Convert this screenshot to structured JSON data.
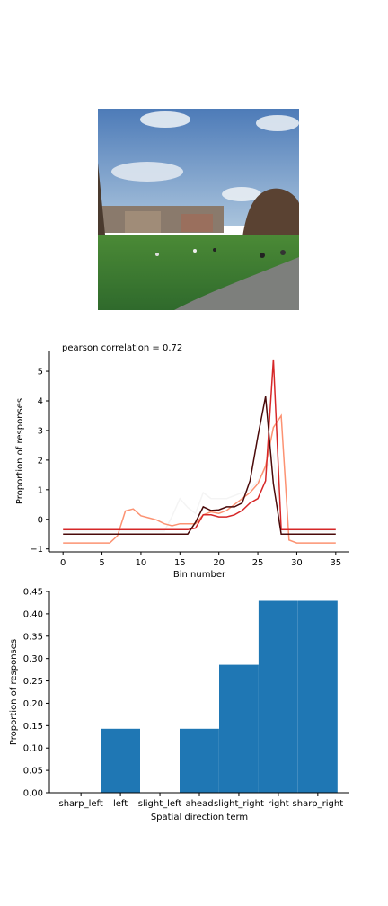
{
  "photo": {
    "icon": "campus-lawn-photo",
    "colors": {
      "sky": "#5b87c0",
      "grass": "#3f7a2e",
      "path": "#7d7f7c",
      "trees": "#5a4232"
    }
  },
  "chart_data": [
    {
      "type": "line",
      "title": "pearson correlation = 0.72",
      "xlabel": "Bin number",
      "ylabel": "Proportion of responses",
      "xlim": [
        -1.75,
        36.75
      ],
      "ylim": [
        -1.1,
        5.7
      ],
      "xticks": [
        0,
        5,
        10,
        15,
        20,
        25,
        30,
        35
      ],
      "yticks": [
        -1,
        0,
        1,
        2,
        3,
        4,
        5
      ],
      "x": [
        0,
        1,
        2,
        3,
        4,
        5,
        6,
        7,
        8,
        9,
        10,
        11,
        12,
        13,
        14,
        15,
        16,
        17,
        18,
        19,
        20,
        21,
        22,
        23,
        24,
        25,
        26,
        27,
        28,
        29,
        30,
        31,
        32,
        33,
        34,
        35
      ],
      "series": [
        {
          "color": "#f4f4f4",
          "values": [
            -0.4,
            -0.4,
            -0.4,
            -0.4,
            -0.4,
            -0.4,
            -0.4,
            -0.4,
            -0.4,
            -0.4,
            -0.4,
            -0.4,
            -0.4,
            -0.4,
            0.1,
            0.7,
            0.4,
            0.2,
            0.9,
            0.7,
            0.7,
            0.7,
            0.8,
            0.9,
            1.0,
            1.3,
            1.7,
            2.2,
            -0.4,
            -0.4,
            -0.4,
            -0.4,
            -0.4,
            -0.4,
            -0.4,
            -0.4
          ]
        },
        {
          "color": "#fc9272",
          "values": [
            -0.8,
            -0.8,
            -0.8,
            -0.8,
            -0.8,
            -0.8,
            -0.8,
            -0.55,
            0.28,
            0.35,
            0.12,
            0.05,
            -0.02,
            -0.15,
            -0.22,
            -0.15,
            -0.15,
            -0.15,
            0.15,
            0.25,
            0.2,
            0.3,
            0.5,
            0.7,
            0.9,
            1.2,
            1.8,
            3.1,
            3.5,
            -0.7,
            -0.8,
            -0.8,
            -0.8,
            -0.8,
            -0.8,
            -0.8
          ]
        },
        {
          "color": "#d62728",
          "values": [
            -0.35,
            -0.35,
            -0.35,
            -0.35,
            -0.35,
            -0.35,
            -0.35,
            -0.35,
            -0.35,
            -0.35,
            -0.35,
            -0.35,
            -0.35,
            -0.35,
            -0.35,
            -0.35,
            -0.35,
            -0.3,
            0.15,
            0.15,
            0.08,
            0.08,
            0.15,
            0.3,
            0.55,
            0.7,
            1.3,
            5.4,
            -0.35,
            -0.35,
            -0.35,
            -0.35,
            -0.35,
            -0.35,
            -0.35,
            -0.35
          ]
        },
        {
          "color": "#4a0a0a",
          "values": [
            -0.5,
            -0.5,
            -0.5,
            -0.5,
            -0.5,
            -0.5,
            -0.5,
            -0.5,
            -0.5,
            -0.5,
            -0.5,
            -0.5,
            -0.5,
            -0.5,
            -0.5,
            -0.5,
            -0.5,
            -0.1,
            0.42,
            0.3,
            0.32,
            0.42,
            0.42,
            0.55,
            1.3,
            2.8,
            4.15,
            1.2,
            -0.5,
            -0.5,
            -0.5,
            -0.5,
            -0.5,
            -0.5,
            -0.5,
            -0.5
          ]
        }
      ],
      "grid": false,
      "legend": "none"
    },
    {
      "type": "bar",
      "xlabel": "Spatial direction term",
      "ylabel": "Proportion of responses",
      "categories": [
        "sharp_left",
        "left",
        "slight_left",
        "ahead",
        "slight_right",
        "right",
        "sharp_right"
      ],
      "values": [
        0.0,
        0.143,
        0.0,
        0.143,
        0.286,
        0.429,
        0.429
      ],
      "ylim": [
        0,
        0.45
      ],
      "yticks": [
        "0.00",
        "0.05",
        "0.10",
        "0.15",
        "0.20",
        "0.25",
        "0.30",
        "0.35",
        "0.40",
        "0.45"
      ],
      "color": "#1f77b4",
      "grid": false,
      "legend": "none"
    }
  ]
}
